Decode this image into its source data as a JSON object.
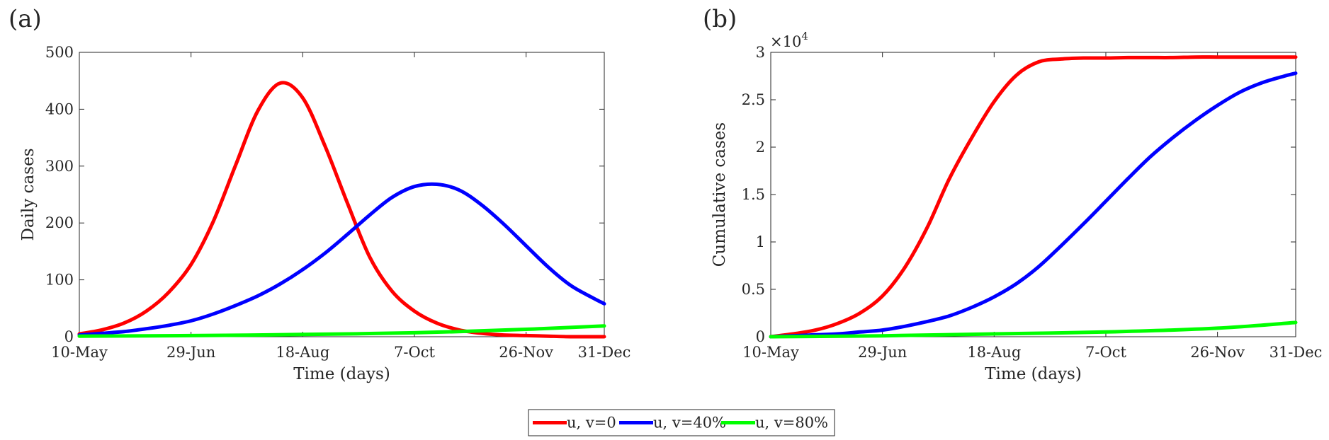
{
  "colors": {
    "red": "#ff0000",
    "blue": "#0000ff",
    "green": "#00ff00"
  },
  "legend": [
    {
      "label": "u, v=0",
      "color": "#ff0000"
    },
    {
      "label": "u, v=40%",
      "color": "#0000ff"
    },
    {
      "label": "u, v=80%",
      "color": "#00ff00"
    }
  ],
  "chart_data": [
    {
      "type": "line",
      "panel_label": "(a)",
      "xlabel": "Time (days)",
      "ylabel": "Daily cases",
      "x_axis": "date",
      "xlim": [
        "10-May",
        "31-Dec"
      ],
      "x_ticks": [
        "10-May",
        "29-Jun",
        "18-Aug",
        "7-Oct",
        "26-Nov",
        "31-Dec"
      ],
      "ylim": [
        0,
        500
      ],
      "y_ticks": [
        "0",
        "100",
        "200",
        "300",
        "400",
        "500"
      ],
      "grid": false,
      "legend": "bottom-center",
      "series": [
        {
          "name": "u, v=0",
          "color": "#ff0000",
          "x": [
            "10-May",
            "20-May",
            "30-May",
            "9-Jun",
            "19-Jun",
            "29-Jun",
            "9-Jul",
            "19-Jul",
            "29-Jul",
            "8-Aug",
            "18-Aug",
            "28-Aug",
            "7-Sep",
            "17-Sep",
            "27-Sep",
            "7-Oct",
            "17-Oct",
            "27-Oct",
            "6-Nov",
            "16-Nov",
            "26-Nov",
            "6-Dec",
            "16-Dec",
            "26-Dec",
            "31-Dec"
          ],
          "y": [
            5,
            12,
            24,
            45,
            78,
            127,
            203,
            302,
            398,
            446,
            420,
            335,
            235,
            140,
            80,
            45,
            24,
            12,
            6,
            3,
            2,
            1,
            0,
            0,
            0
          ]
        },
        {
          "name": "u, v=40%",
          "color": "#0000ff",
          "x": [
            "10-May",
            "20-May",
            "30-May",
            "9-Jun",
            "19-Jun",
            "29-Jun",
            "9-Jul",
            "19-Jul",
            "29-Jul",
            "8-Aug",
            "18-Aug",
            "28-Aug",
            "7-Sep",
            "17-Sep",
            "27-Sep",
            "7-Oct",
            "17-Oct",
            "27-Oct",
            "6-Nov",
            "16-Nov",
            "26-Nov",
            "6-Dec",
            "16-Dec",
            "26-Dec",
            "31-Dec"
          ],
          "y": [
            3,
            6,
            9,
            14,
            20,
            28,
            40,
            55,
            72,
            93,
            118,
            147,
            180,
            214,
            245,
            264,
            268,
            258,
            232,
            198,
            160,
            122,
            90,
            68,
            58
          ]
        },
        {
          "name": "u, v=80%",
          "color": "#00ff00",
          "x": [
            "10-May",
            "29-Jun",
            "18-Aug",
            "7-Oct",
            "26-Nov",
            "31-Dec"
          ],
          "y": [
            1,
            2,
            4,
            7,
            13,
            19
          ]
        }
      ]
    },
    {
      "type": "line",
      "panel_label": "(b)",
      "xlabel": "Time (days)",
      "ylabel": "Cumulative cases",
      "y_multiplier": "×10",
      "y_multiplier_exp": "4",
      "x_axis": "date",
      "xlim": [
        "10-May",
        "31-Dec"
      ],
      "x_ticks": [
        "10-May",
        "29-Jun",
        "18-Aug",
        "7-Oct",
        "26-Nov",
        "31-Dec"
      ],
      "ylim": [
        0,
        3
      ],
      "y_ticks": [
        "0",
        "0.5",
        "1",
        "1.5",
        "2",
        "2.5",
        "3"
      ],
      "grid": false,
      "legend": "bottom-center",
      "series": [
        {
          "name": "u, v=0",
          "color": "#ff0000",
          "x": [
            "10-May",
            "20-May",
            "30-May",
            "9-Jun",
            "19-Jun",
            "29-Jun",
            "9-Jul",
            "19-Jul",
            "29-Jul",
            "8-Aug",
            "18-Aug",
            "28-Aug",
            "7-Sep",
            "17-Sep",
            "27-Sep",
            "7-Oct",
            "17-Oct",
            "27-Oct",
            "6-Nov",
            "16-Nov",
            "26-Nov",
            "6-Dec",
            "16-Dec",
            "26-Dec",
            "31-Dec"
          ],
          "y": [
            0.0,
            0.03,
            0.07,
            0.14,
            0.25,
            0.43,
            0.73,
            1.15,
            1.67,
            2.1,
            2.48,
            2.76,
            2.9,
            2.93,
            2.94,
            2.94,
            2.945,
            2.945,
            2.945,
            2.95,
            2.95,
            2.95,
            2.95,
            2.95,
            2.95
          ]
        },
        {
          "name": "u, v=40%",
          "color": "#0000ff",
          "x": [
            "10-May",
            "20-May",
            "30-May",
            "9-Jun",
            "19-Jun",
            "29-Jun",
            "9-Jul",
            "19-Jul",
            "29-Jul",
            "8-Aug",
            "18-Aug",
            "28-Aug",
            "7-Sep",
            "17-Sep",
            "27-Sep",
            "7-Oct",
            "17-Oct",
            "27-Oct",
            "6-Nov",
            "16-Nov",
            "26-Nov",
            "6-Dec",
            "16-Dec",
            "26-Dec",
            "31-Dec"
          ],
          "y": [
            0.0,
            0.01,
            0.02,
            0.03,
            0.05,
            0.07,
            0.11,
            0.16,
            0.22,
            0.31,
            0.42,
            0.56,
            0.74,
            0.96,
            1.19,
            1.43,
            1.67,
            1.9,
            2.1,
            2.28,
            2.44,
            2.58,
            2.68,
            2.75,
            2.78
          ]
        },
        {
          "name": "u, v=80%",
          "color": "#00ff00",
          "x": [
            "10-May",
            "29-Jun",
            "18-Aug",
            "7-Oct",
            "26-Nov",
            "31-Dec"
          ],
          "y": [
            0.0,
            0.01,
            0.03,
            0.05,
            0.09,
            0.15
          ]
        }
      ]
    }
  ]
}
